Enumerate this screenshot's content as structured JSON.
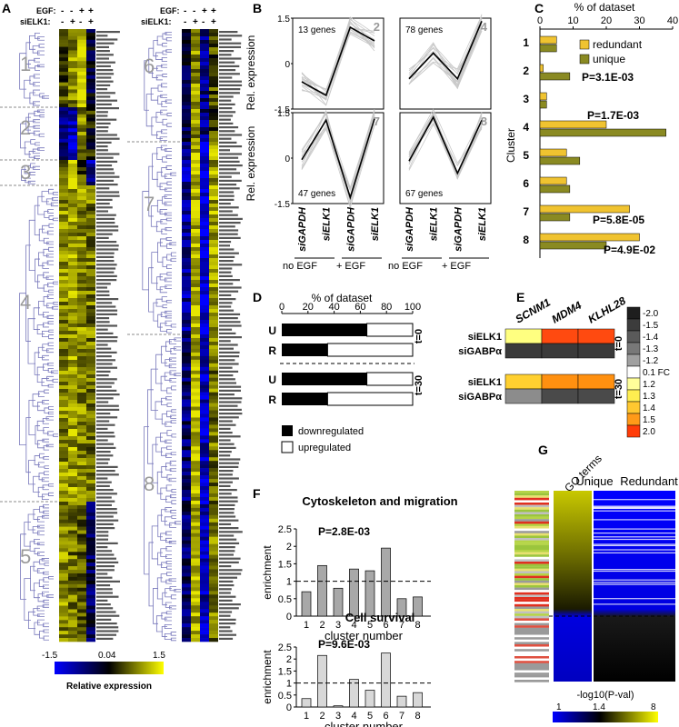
{
  "panel_letters": [
    "A",
    "B",
    "C",
    "D",
    "E",
    "F",
    "G"
  ],
  "A": {
    "egf_label": "EGF:",
    "siELK1_label": "siELK1:",
    "egf_signs": [
      "-",
      "-",
      "+",
      "+"
    ],
    "sielk1_signs": [
      "-",
      "+",
      "-",
      "+"
    ],
    "colorbar_ticks": [
      "-1.5",
      "0.04",
      "1.5"
    ],
    "colorbar_label": "Relative expression",
    "cluster_labels": [
      "1",
      "2",
      "3",
      "4",
      "5",
      "6",
      "7",
      "8"
    ]
  },
  "B": {
    "ylabel": "Rel. expression",
    "y_ticks": [
      "1.5",
      "0",
      "-1.5"
    ],
    "x_labels": [
      "siGAPDH",
      "siELK1",
      "siGAPDH",
      "siELK1"
    ],
    "group_labels": [
      "no EGF",
      "+ EGF"
    ],
    "panels": [
      {
        "cluster": "2",
        "count_label": "13 genes",
        "values": [
          -0.6,
          -1.05,
          1.2,
          0.75
        ]
      },
      {
        "cluster": "4",
        "count_label": "78 genes",
        "values": [
          -0.5,
          0.35,
          -0.5,
          1.4
        ]
      },
      {
        "cluster": "7",
        "count_label": "47 genes",
        "values": [
          -0.05,
          1.25,
          -1.3,
          1.3
        ]
      },
      {
        "cluster": "8",
        "count_label": "67 genes",
        "values": [
          -0.1,
          1.35,
          -0.5,
          1.25
        ]
      }
    ]
  },
  "C": {
    "title": "% of dataset",
    "x_ticks": [
      "0",
      "10",
      "20",
      "30",
      "40"
    ],
    "ylabel": "Cluster",
    "legend": [
      "redundant",
      "unique"
    ],
    "colors": {
      "redundant": "#f0c330",
      "unique": "#8a8a22"
    },
    "chart_data": {
      "type": "bar",
      "categories": [
        "1",
        "2",
        "3",
        "4",
        "5",
        "6",
        "7",
        "8"
      ],
      "series": [
        {
          "name": "redundant",
          "values": [
            5,
            1,
            2,
            20,
            8,
            8,
            27,
            30
          ]
        },
        {
          "name": "unique",
          "values": [
            5,
            9,
            2,
            38,
            12,
            9,
            9,
            20
          ]
        }
      ],
      "xlim": [
        0,
        40
      ]
    },
    "pvals": [
      {
        "cluster": "2",
        "text": "P=3.1E-03"
      },
      {
        "cluster": "4",
        "text": "P=1.7E-03"
      },
      {
        "cluster": "7",
        "text": "P=5.8E-05"
      },
      {
        "cluster": "8",
        "text": "P=4.9E-02"
      }
    ]
  },
  "D": {
    "title": "% of dataset",
    "x_ticks": [
      "0",
      "20",
      "40",
      "60",
      "80",
      "100"
    ],
    "rows": [
      {
        "label": "U",
        "down": 65,
        "group": "t=0"
      },
      {
        "label": "R",
        "down": 35,
        "group": "t=0"
      },
      {
        "label": "U",
        "down": 65,
        "group": "t=30"
      },
      {
        "label": "R",
        "down": 35,
        "group": "t=30"
      }
    ],
    "time_labels": [
      "t=0",
      "t=30"
    ],
    "legend": [
      "downregulated",
      "upregulated"
    ]
  },
  "E": {
    "genes": [
      "SCNM1",
      "MDM4",
      "KLHL28"
    ],
    "row_labels": [
      "siELK1",
      "siGABPα",
      "siELK1",
      "siGABPα"
    ],
    "time_labels": [
      "t=0",
      "t=30"
    ],
    "cells": [
      [
        "#ffff80",
        "#ff4a10",
        "#ff4a10"
      ],
      [
        "#3a3a3a",
        "#3a3a3a",
        "#3a3a3a"
      ],
      [
        "#ffd030",
        "#ff9010",
        "#ff9010"
      ],
      [
        "#8c8c8c",
        "#4a4a4a",
        "#4a4a4a"
      ]
    ],
    "scale_labels": [
      "-2.0",
      "-1.5",
      "-1.4",
      "-1.3",
      "-1.2",
      "0.1 FC",
      "1.2",
      "1.3",
      "1.4",
      "1.5",
      "2.0"
    ],
    "scale_colors": [
      "#1e1e1e",
      "#3c3c3c",
      "#5a5a5a",
      "#787878",
      "#a0a0a0",
      "#ffffff",
      "#ffff9a",
      "#ffee50",
      "#ffc830",
      "#ff9a18",
      "#ff3c08"
    ]
  },
  "F": {
    "charts": [
      {
        "title": "Cytoskeleton and migration",
        "pval": "P=2.8E-03",
        "ylabel": "enrichment",
        "xlabel": "cluster number",
        "y_ticks": [
          "0",
          "0.5",
          "1",
          "1.5",
          "2",
          "2.5"
        ],
        "color": "#a8a8a8",
        "chart_data": {
          "type": "bar",
          "categories": [
            "1",
            "2",
            "3",
            "4",
            "5",
            "6",
            "7",
            "8"
          ],
          "values": [
            0.7,
            1.45,
            0.8,
            1.35,
            1.3,
            1.95,
            0.5,
            0.55
          ],
          "ylim": [
            0,
            2.5
          ],
          "baseline": 1
        }
      },
      {
        "title": "Cell survival",
        "pval": "P=9.6E-03",
        "ylabel": "enrichment",
        "xlabel": "cluster number",
        "y_ticks": [
          "0",
          "0.5",
          "1",
          "1.5",
          "2",
          "2.5"
        ],
        "color": "#d8d8d8",
        "chart_data": {
          "type": "bar",
          "categories": [
            "1",
            "2",
            "3",
            "4",
            "5",
            "6",
            "7",
            "8"
          ],
          "values": [
            0.35,
            2.15,
            0.05,
            1.15,
            0.7,
            2.25,
            0.45,
            0.6
          ],
          "ylim": [
            0,
            2.5
          ],
          "baseline": 1
        }
      }
    ]
  },
  "G": {
    "headers": [
      "GO terms",
      "Unique",
      "Redundant"
    ],
    "xlabel": "-log10(P-val)",
    "scale_ticks": [
      "1",
      "1.4",
      "8"
    ]
  }
}
